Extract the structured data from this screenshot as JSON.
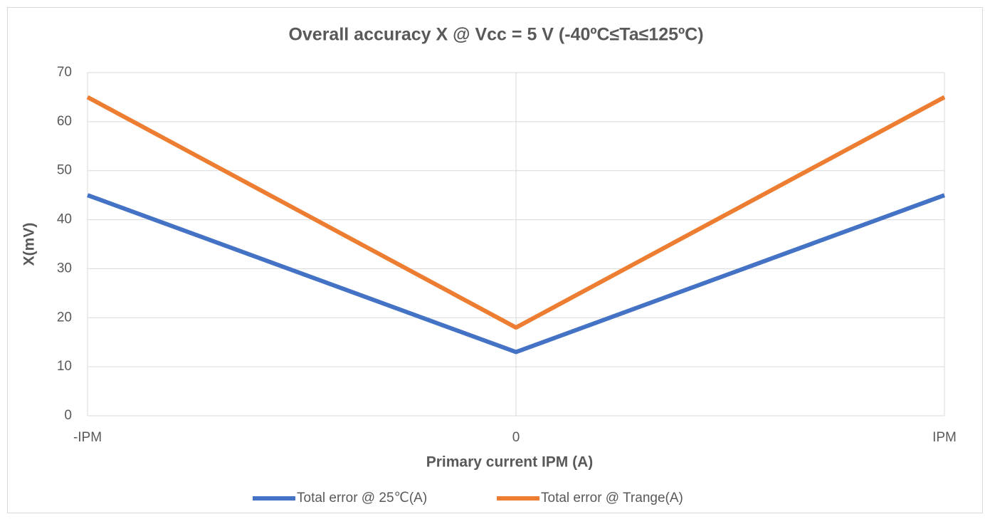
{
  "chart_data": {
    "type": "line",
    "title": "Overall accuracy X @ Vcc = 5 V (-40ºC≤Ta≤125ºC)",
    "x_label": "Primary current IPM (A)",
    "y_label": "X(mV)",
    "categories": [
      "-IPM",
      "0",
      "IPM"
    ],
    "series": [
      {
        "name": "Total error @ 25℃(A)",
        "color": "#4472c4",
        "values": [
          45,
          13,
          45
        ]
      },
      {
        "name": "Total error @ Trange(A)",
        "color": "#ed7d31",
        "values": [
          65,
          18,
          65
        ]
      }
    ],
    "ylim": [
      0,
      70
    ],
    "yticks": [
      0,
      10,
      20,
      30,
      40,
      50,
      60,
      70
    ],
    "grid": true,
    "legend": "bottom"
  }
}
